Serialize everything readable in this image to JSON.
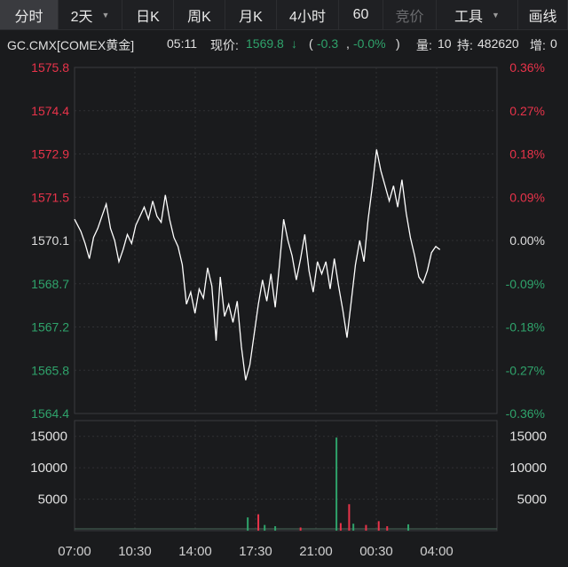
{
  "toolbar": {
    "items": [
      {
        "label": "分时",
        "active": true
      },
      {
        "label": "2天",
        "dropdown": true
      },
      {
        "label": "日K"
      },
      {
        "label": "周K"
      },
      {
        "label": "月K"
      },
      {
        "label": "4小时"
      },
      {
        "label": "60"
      },
      {
        "label": "竞价",
        "disabled": true
      },
      {
        "label": "工具",
        "dropdown": true
      },
      {
        "label": "画线"
      }
    ]
  },
  "quote": {
    "symbol": "GC.CMX[COMEX黄金]",
    "time": "05:11",
    "price_label": "现价:",
    "price": "1569.8",
    "arrow": "↓",
    "change": "-0.3",
    "change_pct": "-0.0%",
    "open_paren": "(",
    "separator": ",",
    "close_paren": ")",
    "volume_label": "量:",
    "volume": "10",
    "oi_label": "持:",
    "open_interest": "482620",
    "oi_change_label": "增:",
    "oi_change": "0"
  },
  "colors": {
    "up": "#e8334a",
    "down": "#2fa36b",
    "neutral": "#dddddd",
    "line": "#ffffff"
  },
  "chart_data": {
    "type": "line",
    "base_price": 1570.1,
    "price_axis": {
      "ticks": [
        "1575.8",
        "1574.4",
        "1572.9",
        "1571.5",
        "1570.1",
        "1568.7",
        "1567.2",
        "1565.8",
        "1564.4"
      ],
      "ylim": [
        1564.4,
        1575.8
      ]
    },
    "pct_axis": {
      "ticks": [
        "0.36%",
        "0.27%",
        "0.18%",
        "0.09%",
        "0.00%",
        "-0.09%",
        "-0.18%",
        "-0.27%",
        "-0.36%"
      ]
    },
    "volume_axis": {
      "ticks": [
        "15000",
        "10000",
        "5000"
      ],
      "ylim": [
        0,
        17500
      ]
    },
    "time_axis": {
      "labels": [
        "07:00",
        "10:30",
        "14:00",
        "17:30",
        "21:00",
        "00:30",
        "04:00"
      ]
    },
    "price_series": [
      [
        0,
        1570.8
      ],
      [
        1.5,
        1570.4
      ],
      [
        2.5,
        1570.0
      ],
      [
        3.5,
        1569.5
      ],
      [
        4.5,
        1570.2
      ],
      [
        5.5,
        1570.5
      ],
      [
        6.5,
        1570.9
      ],
      [
        7.5,
        1571.3
      ],
      [
        8.5,
        1570.5
      ],
      [
        9.5,
        1570.1
      ],
      [
        10.5,
        1569.4
      ],
      [
        11.5,
        1569.8
      ],
      [
        12.5,
        1570.3
      ],
      [
        13.5,
        1570.0
      ],
      [
        14.5,
        1570.6
      ],
      [
        15.5,
        1570.9
      ],
      [
        16.5,
        1571.2
      ],
      [
        17.5,
        1570.8
      ],
      [
        18.5,
        1571.4
      ],
      [
        19.5,
        1570.9
      ],
      [
        20.5,
        1570.7
      ],
      [
        21.5,
        1571.6
      ],
      [
        22.5,
        1570.8
      ],
      [
        23.5,
        1570.2
      ],
      [
        24.5,
        1569.9
      ],
      [
        25.5,
        1569.3
      ],
      [
        26.5,
        1568.0
      ],
      [
        27.5,
        1568.4
      ],
      [
        28.5,
        1567.7
      ],
      [
        29.5,
        1568.5
      ],
      [
        30.5,
        1568.2
      ],
      [
        31.5,
        1569.2
      ],
      [
        32.5,
        1568.6
      ],
      [
        33.5,
        1566.8
      ],
      [
        34.5,
        1568.9
      ],
      [
        35.5,
        1567.6
      ],
      [
        36.5,
        1568.0
      ],
      [
        37.5,
        1567.4
      ],
      [
        38.5,
        1568.1
      ],
      [
        39.5,
        1566.6
      ],
      [
        40.5,
        1565.5
      ],
      [
        41.5,
        1566.0
      ],
      [
        42.5,
        1567.0
      ],
      [
        43.5,
        1568.0
      ],
      [
        44.5,
        1568.8
      ],
      [
        45.5,
        1568.1
      ],
      [
        46.5,
        1569.0
      ],
      [
        47.5,
        1567.9
      ],
      [
        48.5,
        1569.3
      ],
      [
        49.5,
        1570.8
      ],
      [
        50.5,
        1570.1
      ],
      [
        51.5,
        1569.6
      ],
      [
        52.5,
        1568.8
      ],
      [
        53.5,
        1569.5
      ],
      [
        54.5,
        1570.3
      ],
      [
        55.5,
        1569.1
      ],
      [
        56.5,
        1568.4
      ],
      [
        57.5,
        1569.4
      ],
      [
        58.5,
        1569.0
      ],
      [
        59.5,
        1569.4
      ],
      [
        60.5,
        1568.5
      ],
      [
        61.5,
        1569.5
      ],
      [
        62.5,
        1568.6
      ],
      [
        63.5,
        1567.8
      ],
      [
        64.5,
        1566.9
      ],
      [
        65.5,
        1568.1
      ],
      [
        66.5,
        1569.3
      ],
      [
        67.5,
        1570.1
      ],
      [
        68.5,
        1569.4
      ],
      [
        69.5,
        1570.8
      ],
      [
        70.5,
        1571.9
      ],
      [
        71.5,
        1573.1
      ],
      [
        72.5,
        1572.4
      ],
      [
        73.5,
        1571.9
      ],
      [
        74.5,
        1571.4
      ],
      [
        75.5,
        1571.9
      ],
      [
        76.5,
        1571.2
      ],
      [
        77.5,
        1572.1
      ],
      [
        78.5,
        1571.0
      ],
      [
        79.5,
        1570.2
      ],
      [
        80.5,
        1569.6
      ],
      [
        81.5,
        1568.9
      ],
      [
        82.5,
        1568.7
      ],
      [
        83.5,
        1569.1
      ],
      [
        84.5,
        1569.7
      ],
      [
        85.5,
        1569.9
      ],
      [
        86.5,
        1569.8
      ]
    ],
    "price_series_x_range": [
      0,
      100
    ],
    "volume_bars": [
      [
        41.0,
        2100,
        "down"
      ],
      [
        43.5,
        2600,
        "up"
      ],
      [
        45.0,
        900,
        "down"
      ],
      [
        47.5,
        700,
        "down"
      ],
      [
        53.5,
        500,
        "up"
      ],
      [
        62.0,
        14800,
        "down"
      ],
      [
        63.0,
        1200,
        "up"
      ],
      [
        65.0,
        4200,
        "up"
      ],
      [
        66.0,
        1100,
        "down"
      ],
      [
        69.0,
        900,
        "up"
      ],
      [
        72.0,
        1500,
        "up"
      ],
      [
        74.0,
        700,
        "up"
      ],
      [
        79.0,
        1000,
        "down"
      ]
    ]
  }
}
